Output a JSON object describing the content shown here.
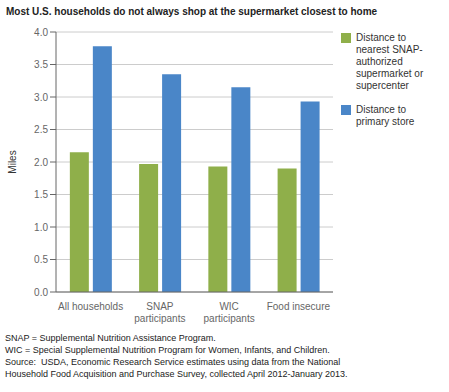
{
  "chart_data": {
    "type": "bar",
    "title": "Most U.S. households do not always shop at the supermarket closest to home",
    "y_label": "Miles",
    "categories": [
      "All households",
      "SNAP\nparticipants",
      "WIC\nparticipants",
      "Food insecure"
    ],
    "series": [
      {
        "name": "Distance to\nnearest SNAP-\nauthorized\nsupermarket or\nsupercenter",
        "color": "#8faf4a",
        "values": [
          2.15,
          1.97,
          1.93,
          1.9
        ]
      },
      {
        "name": "Distance to\nprimary store",
        "color": "#4a86c8",
        "values": [
          3.78,
          3.35,
          3.15,
          2.93
        ]
      }
    ],
    "ylim": [
      0,
      4.0
    ],
    "yticks": [
      {
        "value": 0,
        "label": "0.0"
      },
      0.5,
      {
        "value": 1,
        "label": "1.0"
      },
      1.5,
      {
        "value": 2,
        "label": "2.0"
      },
      2.5,
      {
        "value": 3,
        "label": "3.0"
      },
      3.5,
      {
        "value": 4,
        "label": "4.0"
      }
    ],
    "grid": true,
    "legend": "right",
    "footnote": "SNAP = Supplemental Nutrition Assistance Program.\nWIC = Special Supplemental Nutrition Program for Women, Infants, and Children.\nSource:  USDA, Economic Research Service estimates using data from the National\nHousehold Food Acquisition and Purchase Survey, collected April 2012-January 2013."
  }
}
